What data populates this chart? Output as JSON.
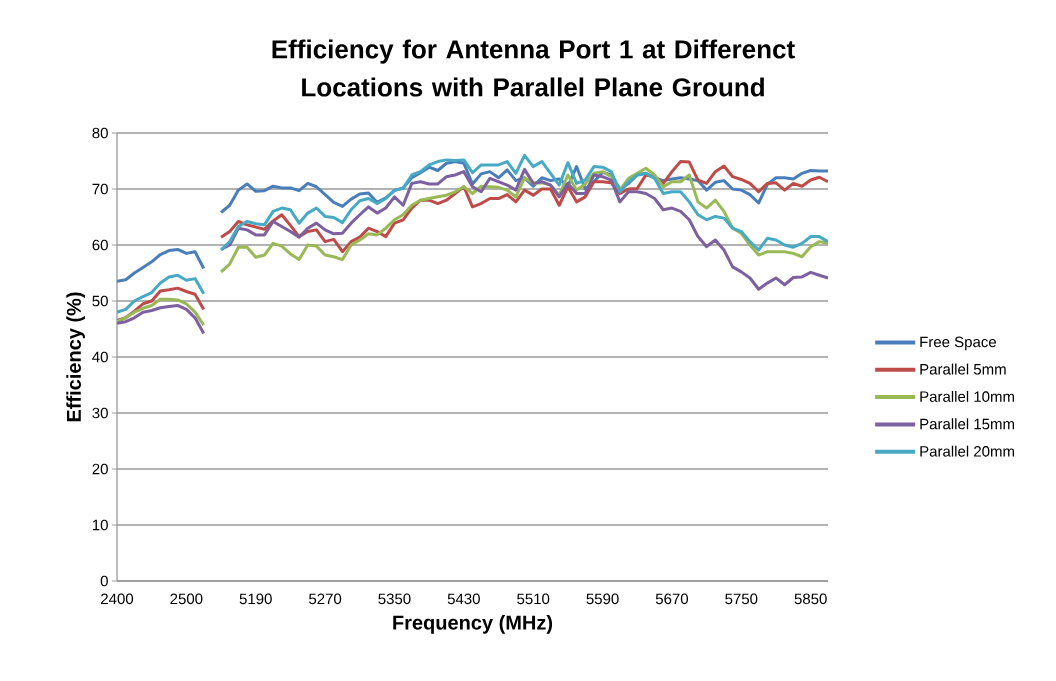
{
  "chart_data": {
    "type": "line",
    "title": "Efficiency for Antenna Port 1 at Differenct Locations with Parallel Plane Ground",
    "xlabel": "Frequency  (MHz)",
    "ylabel": "Efficiency (%)",
    "categories": [
      "2400",
      null,
      null,
      null,
      null,
      null,
      null,
      null,
      "2500",
      null,
      null,
      null,
      null,
      null,
      null,
      null,
      "5190",
      null,
      null,
      null,
      null,
      null,
      null,
      null,
      "5270",
      null,
      null,
      null,
      null,
      null,
      null,
      null,
      "5350",
      null,
      null,
      null,
      null,
      null,
      null,
      null,
      "5430",
      null,
      null,
      null,
      null,
      null,
      null,
      null,
      "5510",
      null,
      null,
      null,
      null,
      null,
      null,
      null,
      "5590",
      null,
      null,
      null,
      null,
      null,
      null,
      null,
      "5670",
      null,
      null,
      null,
      null,
      null,
      null,
      null,
      "5750",
      null,
      null,
      null,
      null,
      null,
      null,
      null,
      "5850",
      null,
      null
    ],
    "series": [
      {
        "name": "Free Space",
        "color": "#4a7ebb",
        "values": [
          53.5,
          53.8,
          55,
          56,
          57,
          58.3,
          59,
          59.2,
          58.5,
          58.8,
          55.8,
          null,
          65.8,
          67.1,
          69.8,
          70.9,
          69.6,
          69.7,
          70.5,
          70.2,
          70.2,
          69.7,
          71,
          70.4,
          69,
          67.6,
          66.9,
          68.2,
          69.1,
          69.3,
          67.6,
          68.4,
          69.7,
          70.2,
          72,
          72.9,
          73.9,
          73.3,
          74.6,
          74.9,
          74.6,
          70.9,
          72.7,
          73.1,
          72,
          73.4,
          71.5,
          72,
          70.5,
          72,
          71.5,
          71.8,
          70.5,
          74,
          70,
          71.3,
          73,
          72.5,
          70,
          71,
          72.5,
          72.8,
          72,
          71.5,
          71.8,
          72,
          71.8,
          71.5,
          69.8,
          71.2,
          71.5,
          70,
          69.8,
          69,
          67.5,
          70.8,
          72,
          72,
          71.8,
          72.8,
          73.3,
          73.2,
          73.2
        ]
      },
      {
        "name": "Parallel 5mm",
        "color": "#be4b48",
        "values": [
          46.5,
          47,
          48.2,
          49.5,
          50,
          51.8,
          52,
          52.3,
          51.7,
          51.2,
          48.5,
          null,
          61.4,
          62.4,
          64.2,
          63.6,
          63.2,
          62.8,
          64.3,
          65.4,
          63.5,
          61.5,
          62.4,
          62.7,
          60.6,
          61,
          58.8,
          60.6,
          61.4,
          63,
          62.4,
          61.5,
          63.9,
          64.5,
          66.6,
          68,
          68,
          67.4,
          68,
          69.2,
          70.4,
          66.8,
          67.4,
          68.3,
          68.3,
          69,
          67.7,
          69.8,
          68.9,
          70,
          70,
          67.1,
          70.4,
          67.7,
          68.6,
          71.3,
          71.3,
          71.1,
          69.2,
          70,
          70.1,
          72.5,
          72.2,
          71,
          73.1,
          74.9,
          74.8,
          71.6,
          71,
          73.1,
          74.1,
          72.2,
          71.7,
          71,
          69.5,
          71,
          71.1,
          69.8,
          71,
          70.5,
          71.6,
          72.1,
          71.3
        ]
      },
      {
        "name": "Parallel 10mm",
        "color": "#98b954",
        "values": [
          46.3,
          47,
          48,
          48.7,
          49.2,
          50.3,
          50.3,
          50.2,
          49.5,
          48,
          45.7,
          null,
          55.2,
          56.6,
          59.6,
          59.6,
          57.8,
          58.2,
          60.3,
          59.8,
          58.4,
          57.4,
          60,
          59.8,
          58.2,
          57.9,
          57.4,
          60,
          60.9,
          62,
          61.8,
          63,
          64.5,
          65.4,
          67.1,
          68,
          68.3,
          68.6,
          68.9,
          69.5,
          70.4,
          69.2,
          70.5,
          70.4,
          70.3,
          69.8,
          68.6,
          72,
          71,
          71.1,
          70.7,
          68.9,
          72.5,
          69.8,
          70.9,
          72.8,
          73.1,
          72.2,
          69.8,
          71.9,
          72.8,
          73.7,
          72.5,
          70.4,
          71.3,
          71.3,
          72.5,
          67.7,
          66.6,
          68,
          66,
          63,
          62.1,
          60,
          58.2,
          58.8,
          58.8,
          58.8,
          58.5,
          57.9,
          59.7,
          60.6,
          60.3
        ]
      },
      {
        "name": "Parallel 15mm",
        "color": "#7d60a0",
        "values": [
          46,
          46.3,
          47,
          48,
          48.3,
          48.8,
          49,
          49.2,
          48.5,
          47,
          44.2,
          null,
          59.2,
          60,
          63,
          62.7,
          61.8,
          61.8,
          64.2,
          63.3,
          62.4,
          61.4,
          63,
          63.9,
          62.7,
          62,
          62.1,
          63.9,
          65.4,
          66.8,
          65.7,
          66.6,
          68.6,
          67.1,
          71,
          71.3,
          70.9,
          70.9,
          72.2,
          72.5,
          73.1,
          70.4,
          69.5,
          71.9,
          71.3,
          70.7,
          69.8,
          73.5,
          71,
          71.3,
          70.7,
          68.6,
          71,
          69.2,
          69.2,
          72.5,
          72.2,
          71.6,
          67.7,
          69.5,
          69.5,
          69.2,
          68.3,
          66.3,
          66.6,
          66,
          64.5,
          61.5,
          59.7,
          60.9,
          59.1,
          56.1,
          55.2,
          54.1,
          52.1,
          53.2,
          54.1,
          52.9,
          54.2,
          54.3,
          55.1,
          54.6,
          54.1
        ]
      },
      {
        "name": "Parallel 20mm",
        "color": "#46aac5",
        "values": [
          48,
          48.5,
          50,
          50.8,
          51.5,
          53.2,
          54.3,
          54.6,
          53.7,
          54,
          51.3,
          null,
          59.1,
          60.6,
          63.3,
          64.2,
          63.8,
          63.6,
          66,
          66.6,
          66.3,
          63.9,
          65.7,
          66.6,
          65.1,
          64.9,
          64,
          66.3,
          67.9,
          68.3,
          67.4,
          68.3,
          69.8,
          70.1,
          72.5,
          73.1,
          74.3,
          74.9,
          75.2,
          75.1,
          75.2,
          72.9,
          74.3,
          74.3,
          74.3,
          74.9,
          72.8,
          76,
          74,
          74.9,
          72.8,
          70.7,
          74.7,
          71,
          71.6,
          74,
          73.9,
          73.1,
          69.5,
          71.3,
          72.5,
          72.8,
          71.9,
          69.2,
          69.5,
          69.5,
          67.7,
          65.4,
          64.5,
          65.1,
          64.8,
          63,
          62.4,
          60.6,
          59.1,
          61.2,
          60.9,
          60,
          59.6,
          60.3,
          61.5,
          61.5,
          60.6
        ]
      }
    ],
    "ylim": [
      0,
      80
    ],
    "yticks": [
      0,
      10,
      20,
      30,
      40,
      50,
      60,
      70,
      80
    ],
    "grid": "y",
    "legend": "right"
  }
}
